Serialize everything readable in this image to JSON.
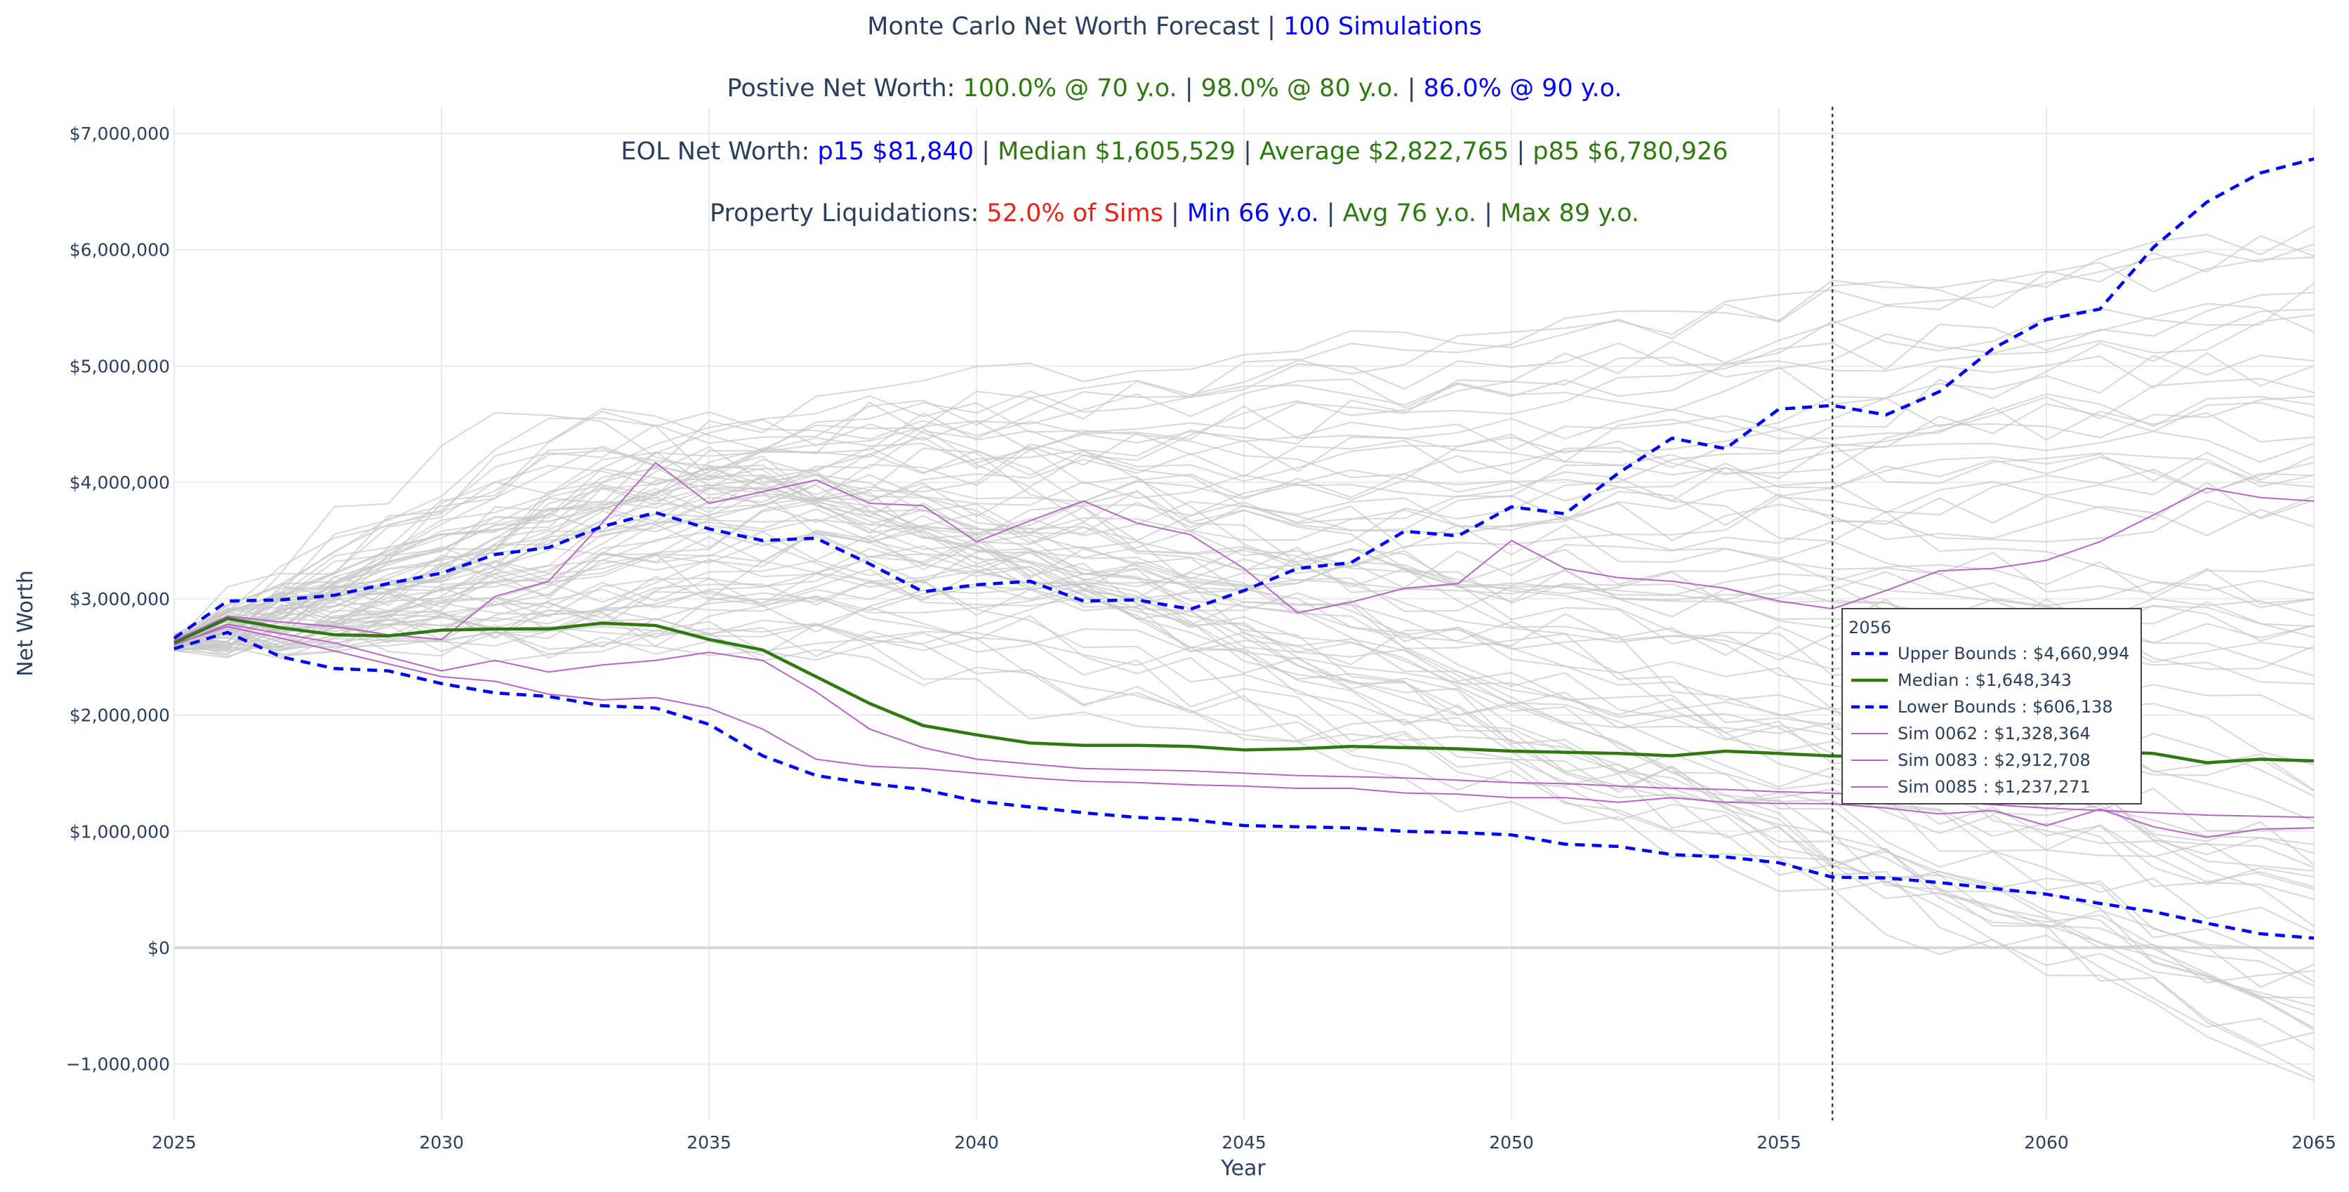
{
  "title": {
    "line1": {
      "label": "Monte Carlo Net Worth Forecast | ",
      "sims": "100 Simulations"
    },
    "line2": {
      "label": "Postive Net Worth: ",
      "v70": "100.0% @ 70 y.o.",
      "sep1": " | ",
      "v80": "98.0% @ 80 y.o.",
      "sep2": " | ",
      "v90": "86.0% @ 90 y.o."
    },
    "line3": {
      "label": "EOL Net Worth: ",
      "p15": "p15 $81,840",
      "sep1": " | ",
      "median": "Median $1,605,529",
      "sep2": " | ",
      "average": "Average $2,822,765",
      "sep3": " | ",
      "p85": "p85 $6,780,926"
    },
    "line4": {
      "label": "Property Liquidations: ",
      "pct": "52.0% of Sims",
      "sep1": " | ",
      "min": "Min 66 y.o.",
      "sep2": " | ",
      "avg": "Avg 76 y.o.",
      "sep3": " | ",
      "max": "Max 89 y.o."
    }
  },
  "tooltip": {
    "header": "2056",
    "rows": [
      {
        "label": "Upper Bounds : $4,660,994",
        "color": "#0000ff",
        "style": "dash"
      },
      {
        "label": "Median : $1,648,343",
        "color": "#2e7a10",
        "style": "solid"
      },
      {
        "label": "Lower Bounds : $606,138",
        "color": "#0000ff",
        "style": "dash"
      },
      {
        "label": "Sim 0062 : $1,328,364",
        "color": "#b766c6",
        "style": "thin"
      },
      {
        "label": "Sim 0083 : $2,912,708",
        "color": "#b766c6",
        "style": "thin"
      },
      {
        "label": "Sim 0085 : $1,237,271",
        "color": "#b766c6",
        "style": "thin"
      }
    ]
  },
  "colors": {
    "upper": "#0000ff",
    "median": "#2e7a10",
    "lower": "#0000ff",
    "highlight": "#b766c6",
    "background": "#c8c8c8",
    "grid": "#ebebeb",
    "hover_line": "#444444"
  },
  "chart_data": {
    "type": "line",
    "xlabel": "Year",
    "ylabel": "Net Worth",
    "xlim": [
      2025,
      2065
    ],
    "ylim": [
      -1500000,
      7200000
    ],
    "x_ticks": [
      2025,
      2030,
      2035,
      2040,
      2045,
      2050,
      2055,
      2060,
      2065
    ],
    "x_tick_labels": [
      "2025",
      "2030",
      "2035",
      "2040",
      "2045",
      "2050",
      "2055",
      "2060",
      "2065"
    ],
    "y_ticks": [
      -1000000,
      0,
      1000000,
      2000000,
      3000000,
      4000000,
      5000000,
      6000000,
      7000000
    ],
    "y_tick_labels": [
      "−1,000,000",
      "$0",
      "$1,000,000",
      "$2,000,000",
      "$3,000,000",
      "$4,000,000",
      "$5,000,000",
      "$6,000,000",
      "$7,000,000"
    ],
    "hover_x": 2056,
    "grid": true,
    "x": [
      2025,
      2026,
      2027,
      2028,
      2029,
      2030,
      2031,
      2032,
      2033,
      2034,
      2035,
      2036,
      2037,
      2038,
      2039,
      2040,
      2041,
      2042,
      2043,
      2044,
      2045,
      2046,
      2047,
      2048,
      2049,
      2050,
      2051,
      2052,
      2053,
      2054,
      2055,
      2056,
      2057,
      2058,
      2059,
      2060,
      2061,
      2062,
      2063,
      2064,
      2065
    ],
    "series": [
      {
        "name": "Upper Bounds",
        "values": [
          2660000,
          2980000,
          2990000,
          3030000,
          3130000,
          3220000,
          3380000,
          3440000,
          3620000,
          3740000,
          3600000,
          3500000,
          3520000,
          3300000,
          3060000,
          3120000,
          3150000,
          2980000,
          2990000,
          2910000,
          3070000,
          3260000,
          3310000,
          3580000,
          3540000,
          3790000,
          3730000,
          4080000,
          4380000,
          4290000,
          4630000,
          4660994,
          4580000,
          4780000,
          5150000,
          5400000,
          5490000,
          6020000,
          6410000,
          6660000,
          6780926
        ]
      },
      {
        "name": "Median",
        "values": [
          2620000,
          2830000,
          2750000,
          2690000,
          2680000,
          2730000,
          2740000,
          2740000,
          2790000,
          2770000,
          2650000,
          2560000,
          2330000,
          2100000,
          1910000,
          1830000,
          1760000,
          1740000,
          1740000,
          1730000,
          1700000,
          1710000,
          1730000,
          1720000,
          1710000,
          1690000,
          1680000,
          1670000,
          1650000,
          1690000,
          1670000,
          1648343,
          1640000,
          1660000,
          1650000,
          1680000,
          1690000,
          1670000,
          1590000,
          1620000,
          1605529
        ]
      },
      {
        "name": "Lower Bounds",
        "values": [
          2570000,
          2710000,
          2500000,
          2400000,
          2380000,
          2270000,
          2190000,
          2160000,
          2080000,
          2060000,
          1920000,
          1650000,
          1480000,
          1410000,
          1360000,
          1260000,
          1210000,
          1160000,
          1120000,
          1100000,
          1050000,
          1040000,
          1030000,
          1000000,
          990000,
          970000,
          890000,
          870000,
          800000,
          780000,
          730000,
          606138,
          600000,
          560000,
          510000,
          460000,
          380000,
          310000,
          210000,
          120000,
          81840
        ]
      },
      {
        "name": "Sim 0062",
        "values": [
          2600000,
          2780000,
          2700000,
          2620000,
          2500000,
          2380000,
          2470000,
          2370000,
          2430000,
          2470000,
          2540000,
          2470000,
          2200000,
          1880000,
          1720000,
          1620000,
          1580000,
          1540000,
          1530000,
          1520000,
          1500000,
          1480000,
          1470000,
          1460000,
          1440000,
          1420000,
          1410000,
          1390000,
          1370000,
          1360000,
          1340000,
          1328364,
          1300000,
          1260000,
          1230000,
          1200000,
          1180000,
          1160000,
          1140000,
          1130000,
          1120000
        ]
      },
      {
        "name": "Sim 0083",
        "values": [
          2640000,
          2850000,
          2800000,
          2760000,
          2690000,
          2650000,
          3020000,
          3150000,
          3650000,
          4170000,
          3820000,
          3920000,
          4020000,
          3820000,
          3800000,
          3490000,
          3670000,
          3840000,
          3650000,
          3550000,
          3260000,
          2880000,
          2970000,
          3090000,
          3130000,
          3500000,
          3260000,
          3180000,
          3150000,
          3090000,
          2980000,
          2912708,
          3070000,
          3240000,
          3260000,
          3330000,
          3490000,
          3720000,
          3950000,
          3870000,
          3840000
        ]
      },
      {
        "name": "Sim 0085",
        "values": [
          2610000,
          2760000,
          2660000,
          2550000,
          2440000,
          2330000,
          2290000,
          2180000,
          2130000,
          2150000,
          2060000,
          1880000,
          1620000,
          1560000,
          1540000,
          1500000,
          1460000,
          1430000,
          1420000,
          1400000,
          1390000,
          1370000,
          1370000,
          1330000,
          1320000,
          1290000,
          1290000,
          1250000,
          1290000,
          1250000,
          1240000,
          1237271,
          1200000,
          1150000,
          1180000,
          1050000,
          1190000,
          1040000,
          950000,
          1020000,
          1030000
        ]
      }
    ]
  }
}
